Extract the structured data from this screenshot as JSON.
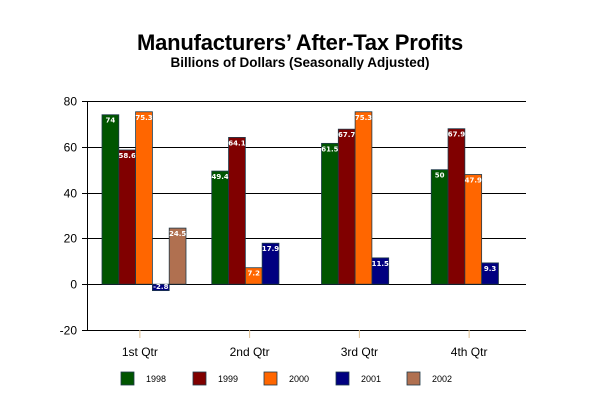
{
  "chart_data": {
    "type": "bar",
    "title": "Manufacturers’ After-Tax Profits",
    "subtitle": "Billions of Dollars (Seasonally Adjusted)",
    "xlabel": "",
    "ylabel": "",
    "categories": [
      "1st Qtr",
      "2nd Qtr",
      "3rd Qtr",
      "4th Qtr"
    ],
    "ylim": [
      -20,
      80
    ],
    "yticks": [
      80,
      60,
      40,
      20,
      0,
      -20
    ],
    "grid": true,
    "legend_position": "bottom",
    "series": [
      {
        "name": "1998",
        "color": "#005500",
        "values": [
          74,
          49.4,
          61.5,
          50
        ],
        "labels": [
          "74",
          "49.4",
          "61.5",
          "50"
        ]
      },
      {
        "name": "1999",
        "color": "#800000",
        "values": [
          58.6,
          64.1,
          67.7,
          67.9
        ],
        "labels": [
          "58.6",
          "64.1",
          "67.7",
          "67.9"
        ]
      },
      {
        "name": "2000",
        "color": "#ff6600",
        "values": [
          75.3,
          7.2,
          75.3,
          47.9
        ],
        "labels": [
          "75.3",
          "7.2",
          "75.3",
          "47.9"
        ]
      },
      {
        "name": "2001",
        "color": "#000080",
        "values": [
          -2.8,
          17.9,
          11.5,
          9.3
        ],
        "labels": [
          "-2.8",
          "17.9",
          "11.5",
          "9.3"
        ]
      },
      {
        "name": "2002",
        "color": "#b07050",
        "values": [
          24.5,
          null,
          null,
          null
        ],
        "labels": [
          "24.5",
          null,
          null,
          null
        ]
      }
    ]
  }
}
